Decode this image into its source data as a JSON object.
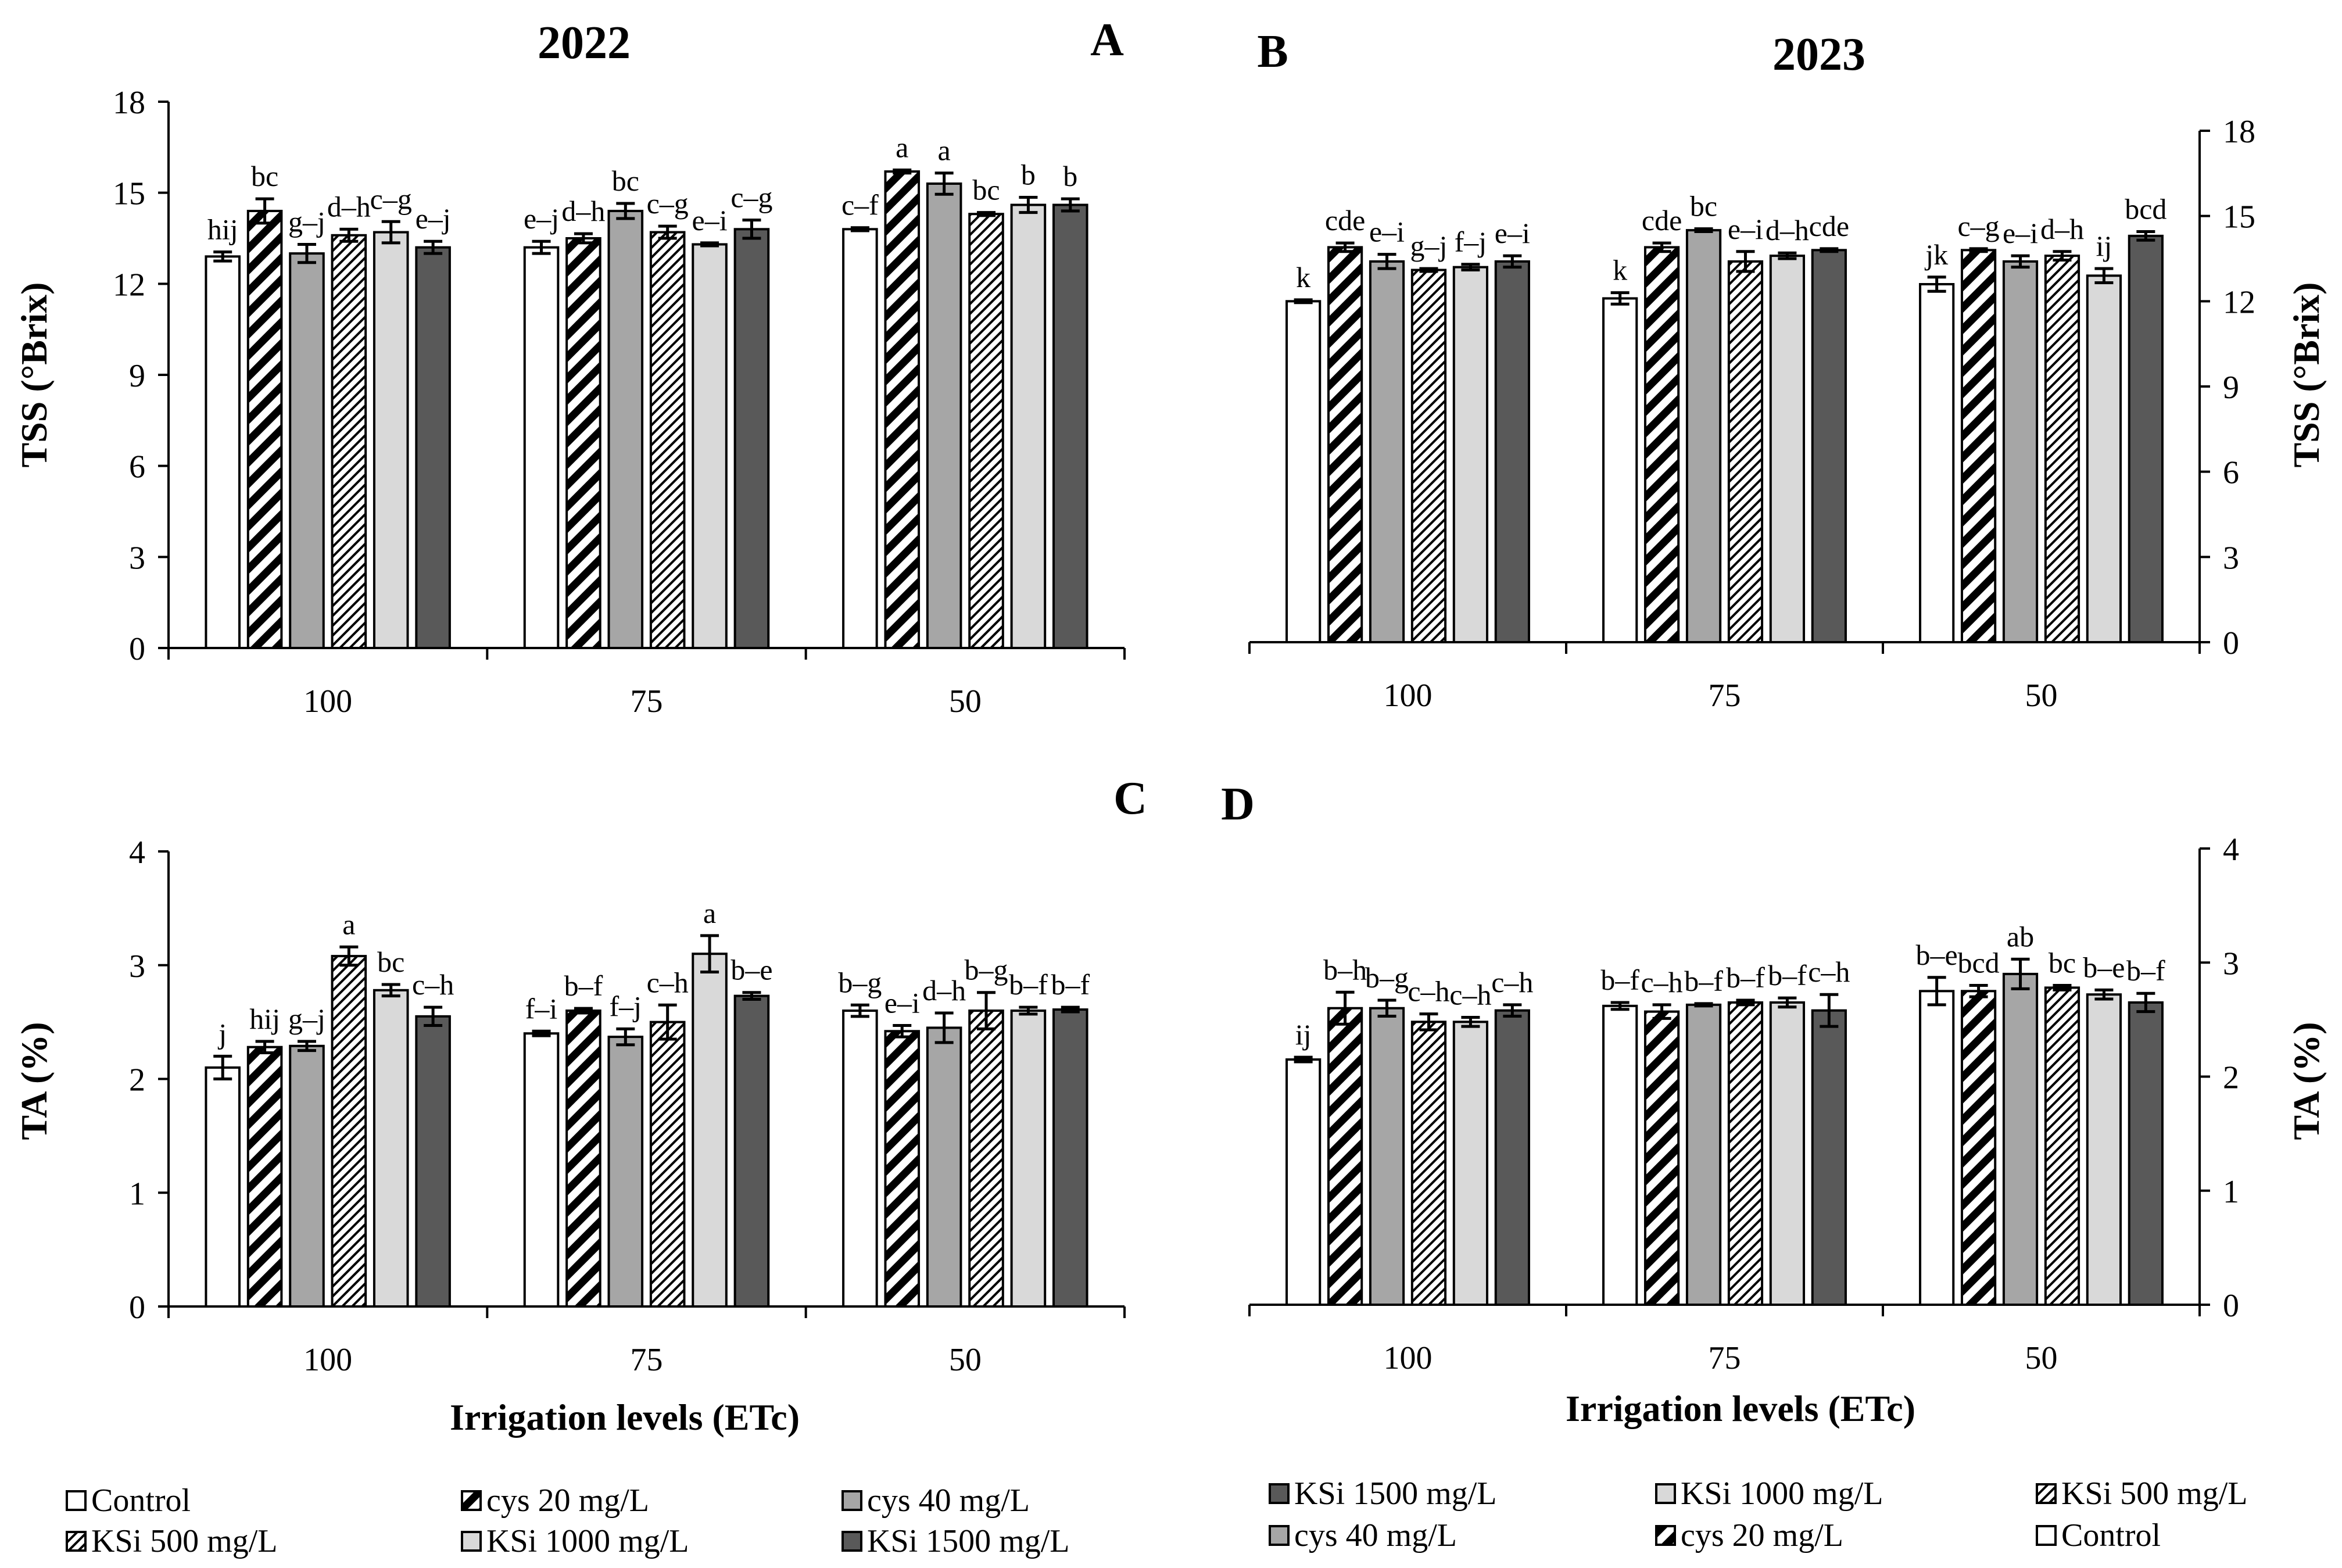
{
  "chart_data": [
    {
      "panel_label": "A",
      "title": "2022",
      "type": "bar",
      "ylabel": "TSS (°Brix)",
      "xlabel": "",
      "ylim": [
        0,
        18
      ],
      "yticks": [
        "0",
        "3",
        "6",
        "9",
        "12",
        "15",
        "18"
      ],
      "axis_side": "left",
      "categories": [
        "100",
        "75",
        "50"
      ],
      "series": [
        {
          "name": "Control",
          "values": [
            12.9,
            13.2,
            13.8
          ],
          "errors": [
            0.15,
            0.2,
            0.05
          ],
          "letters": [
            "hij",
            "e–j",
            "c–f"
          ]
        },
        {
          "name": "cys 20 mg/L",
          "values": [
            14.4,
            13.5,
            15.7
          ],
          "errors": [
            0.4,
            0.15,
            0.05
          ],
          "letters": [
            "bc",
            "d–h",
            "a"
          ]
        },
        {
          "name": "cys 40 mg/L",
          "values": [
            13.0,
            14.4,
            15.3
          ],
          "errors": [
            0.3,
            0.25,
            0.35
          ],
          "letters": [
            "g–j",
            "bc",
            "a"
          ]
        },
        {
          "name": "KSi 500 mg/L",
          "values": [
            13.6,
            13.7,
            14.3
          ],
          "errors": [
            0.2,
            0.2,
            0.05
          ],
          "letters": [
            "d–h",
            "c–g",
            "bc"
          ]
        },
        {
          "name": "KSi 1000 mg/L",
          "values": [
            13.7,
            13.3,
            14.6
          ],
          "errors": [
            0.35,
            0.05,
            0.25
          ],
          "letters": [
            "c–g",
            "e–i",
            "b"
          ]
        },
        {
          "name": "KSi 1500 mg/L",
          "values": [
            13.2,
            13.8,
            14.6
          ],
          "errors": [
            0.2,
            0.3,
            0.2
          ],
          "letters": [
            "e–j",
            "c–g",
            "b"
          ]
        }
      ]
    },
    {
      "panel_label": "B",
      "title": "2023",
      "type": "bar",
      "ylabel": "TSS (°Brix)",
      "xlabel": "",
      "ylim": [
        0,
        18
      ],
      "yticks": [
        "0",
        "3",
        "6",
        "9",
        "12",
        "15",
        "18"
      ],
      "axis_side": "right",
      "categories": [
        "100",
        "75",
        "50"
      ],
      "series": [
        {
          "name": "Control",
          "values": [
            12.0,
            12.1,
            12.6
          ],
          "errors": [
            0.05,
            0.2,
            0.25
          ],
          "letters": [
            "k",
            "k",
            "jk"
          ]
        },
        {
          "name": "cys 20 mg/L",
          "values": [
            13.9,
            13.9,
            13.8
          ],
          "errors": [
            0.15,
            0.15,
            0.05
          ],
          "letters": [
            "cde",
            "cde",
            "c–g"
          ]
        },
        {
          "name": "cys 40 mg/L",
          "values": [
            13.4,
            14.5,
            13.4
          ],
          "errors": [
            0.25,
            0.05,
            0.2
          ],
          "letters": [
            "e–i",
            "bc",
            "e–i"
          ]
        },
        {
          "name": "KSi 500 mg/L",
          "values": [
            13.1,
            13.4,
            13.6
          ],
          "errors": [
            0.05,
            0.35,
            0.15
          ],
          "letters": [
            "g–j",
            "e–i",
            "d–h"
          ]
        },
        {
          "name": "KSi 1000 mg/L",
          "values": [
            13.2,
            13.6,
            12.9
          ],
          "errors": [
            0.1,
            0.1,
            0.25
          ],
          "letters": [
            "f–j",
            "d–h",
            "ij"
          ]
        },
        {
          "name": "KSi 1500 mg/L",
          "values": [
            13.4,
            13.8,
            14.3
          ],
          "errors": [
            0.2,
            0.05,
            0.15
          ],
          "letters": [
            "e–i",
            "cde",
            "bcd"
          ]
        }
      ]
    },
    {
      "panel_label": "C",
      "title": "",
      "type": "bar",
      "ylabel": "TA (%)",
      "xlabel": "Irrigation levels (ETc)",
      "ylim": [
        0,
        4
      ],
      "yticks": [
        "0",
        "1",
        "2",
        "3",
        "4"
      ],
      "axis_side": "left",
      "categories": [
        "100",
        "75",
        "50"
      ],
      "series": [
        {
          "name": "Control",
          "values": [
            2.1,
            2.4,
            2.6
          ],
          "errors": [
            0.1,
            0.02,
            0.05
          ],
          "letters": [
            "j",
            "f–i",
            "b–g"
          ]
        },
        {
          "name": "cys 20 mg/L",
          "values": [
            2.28,
            2.6,
            2.42
          ],
          "errors": [
            0.05,
            0.02,
            0.05
          ],
          "letters": [
            "hij",
            "b–f",
            "e–i"
          ]
        },
        {
          "name": "cys 40 mg/L",
          "values": [
            2.29,
            2.37,
            2.45
          ],
          "errors": [
            0.04,
            0.07,
            0.13
          ],
          "letters": [
            "g–j",
            "f–j",
            "d–h"
          ]
        },
        {
          "name": "KSi 500 mg/L",
          "values": [
            3.08,
            2.5,
            2.6
          ],
          "errors": [
            0.08,
            0.15,
            0.16
          ],
          "letters": [
            "a",
            "c–h",
            "b–g"
          ]
        },
        {
          "name": "KSi 1000 mg/L",
          "values": [
            2.78,
            3.1,
            2.6
          ],
          "errors": [
            0.05,
            0.16,
            0.03
          ],
          "letters": [
            "bc",
            "a",
            "b–f"
          ]
        },
        {
          "name": "KSi 1500 mg/L",
          "values": [
            2.55,
            2.73,
            2.61
          ],
          "errors": [
            0.08,
            0.03,
            0.02
          ],
          "letters": [
            "c–h",
            "b–e",
            "b–f"
          ]
        }
      ]
    },
    {
      "panel_label": "D",
      "title": "",
      "type": "bar",
      "ylabel": "TA (%)",
      "xlabel": "Irrigation levels (ETc)",
      "ylim": [
        0,
        4
      ],
      "yticks": [
        "0",
        "1",
        "2",
        "3",
        "4"
      ],
      "axis_side": "right",
      "categories": [
        "100",
        "75",
        "50"
      ],
      "series": [
        {
          "name": "Control",
          "values": [
            2.15,
            2.62,
            2.75
          ],
          "errors": [
            0.02,
            0.03,
            0.12
          ],
          "letters": [
            "ij",
            "b–f",
            "b–e"
          ]
        },
        {
          "name": "cys 20 mg/L",
          "values": [
            2.6,
            2.57,
            2.75
          ],
          "errors": [
            0.14,
            0.06,
            0.05
          ],
          "letters": [
            "b–h",
            "c–h",
            "bcd"
          ]
        },
        {
          "name": "cys 40 mg/L",
          "values": [
            2.6,
            2.63,
            2.9
          ],
          "errors": [
            0.07,
            0.01,
            0.13
          ],
          "letters": [
            "b–g",
            "b–f",
            "ab"
          ]
        },
        {
          "name": "KSi 500 mg/L",
          "values": [
            2.48,
            2.65,
            2.78
          ],
          "errors": [
            0.07,
            0.02,
            0.02
          ],
          "letters": [
            "c–h",
            "b–f",
            "bc"
          ]
        },
        {
          "name": "KSi 1000 mg/L",
          "values": [
            2.48,
            2.65,
            2.72
          ],
          "errors": [
            0.04,
            0.04,
            0.04
          ],
          "letters": [
            "c–h",
            "b–f",
            "b–e"
          ]
        },
        {
          "name": "KSi 1500 mg/L",
          "values": [
            2.58,
            2.58,
            2.65
          ],
          "errors": [
            0.05,
            0.14,
            0.08
          ],
          "letters": [
            "c–h",
            "c–h",
            "b–f"
          ]
        }
      ]
    }
  ],
  "legend_left": [
    "Control",
    "cys 20 mg/L",
    "cys 40 mg/L",
    "KSi 500 mg/L",
    "KSi 1000 mg/L",
    "KSi 1500 mg/L"
  ],
  "legend_right": [
    "KSi 1500 mg/L",
    "KSi 1000 mg/L",
    "KSi 500 mg/L",
    "cys 40 mg/L",
    "cys 20 mg/L",
    "Control"
  ],
  "series_styles": {
    "Control": {
      "fill": "#ffffff",
      "pattern": "none"
    },
    "cys 20 mg/L": {
      "fill": "#ffffff",
      "pattern": "wide-diagonal"
    },
    "cys 40 mg/L": {
      "fill": "#a6a6a6",
      "pattern": "none"
    },
    "KSi 500 mg/L": {
      "fill": "#ffffff",
      "pattern": "fine-diagonal"
    },
    "KSi 1000 mg/L": {
      "fill": "#d9d9d9",
      "pattern": "none"
    },
    "KSi 1500 mg/L": {
      "fill": "#595959",
      "pattern": "none"
    }
  }
}
